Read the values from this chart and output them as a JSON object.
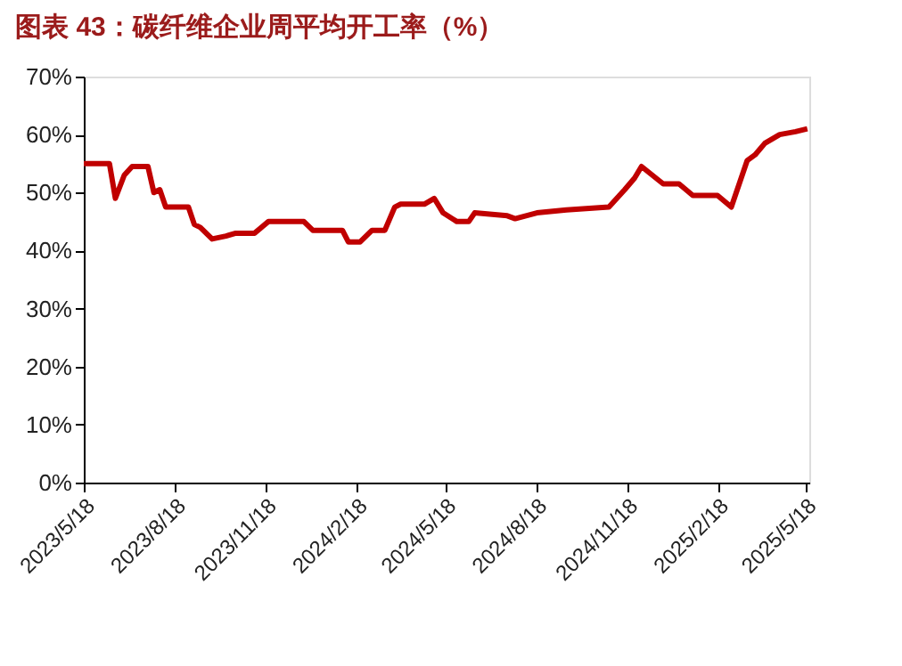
{
  "chart_data": {
    "type": "line",
    "title": "图表 43：碳纤维企业周平均开工率（%）",
    "x": [
      "2023-05-18",
      "2023-06-13",
      "2023-06-19",
      "2023-06-28",
      "2023-07-06",
      "2023-07-22",
      "2023-07-28",
      "2023-08-03",
      "2023-08-09",
      "2023-09-01",
      "2023-09-07",
      "2023-09-13",
      "2023-09-25",
      "2023-10-09",
      "2023-10-19",
      "2023-11-07",
      "2023-11-21",
      "2023-12-27",
      "2024-01-05",
      "2024-02-04",
      "2024-02-10",
      "2024-02-22",
      "2024-03-05",
      "2024-03-18",
      "2024-03-28",
      "2024-04-03",
      "2024-04-27",
      "2024-05-07",
      "2024-05-16",
      "2024-05-30",
      "2024-06-11",
      "2024-06-17",
      "2024-07-20",
      "2024-07-28",
      "2024-08-19",
      "2024-09-18",
      "2024-10-31",
      "2024-11-16",
      "2024-11-26",
      "2024-12-03",
      "2024-12-25",
      "2025-01-10",
      "2025-01-24",
      "2025-02-18",
      "2025-03-04",
      "2025-03-20",
      "2025-03-28",
      "2025-04-07",
      "2025-04-22",
      "2025-05-08",
      "2025-05-20"
    ],
    "series": [
      {
        "color": "#c00000",
        "values": [
          55,
          55,
          49,
          53,
          54.5,
          54.5,
          50,
          50.5,
          47.5,
          47.5,
          44.5,
          44,
          42,
          42.5,
          43,
          43,
          45,
          45,
          43.5,
          43.5,
          41.5,
          41.5,
          43.5,
          43.5,
          47.5,
          48,
          48,
          49,
          46.5,
          45,
          45,
          46.5,
          46,
          45.5,
          46.5,
          47,
          47.5,
          50.5,
          52.5,
          54.5,
          51.5,
          51.5,
          49.5,
          49.5,
          47.5,
          55.5,
          56.5,
          58.5,
          60,
          60.5,
          61
        ]
      }
    ],
    "xlim": [
      "2023-05-18",
      "2025-05-22"
    ],
    "xticks": [
      {
        "value": "2023-05-18",
        "label": "2023/5/18"
      },
      {
        "value": "2023-08-18",
        "label": "2023/8/18"
      },
      {
        "value": "2023-11-18",
        "label": "2023/11/18"
      },
      {
        "value": "2024-02-18",
        "label": "2024/2/18"
      },
      {
        "value": "2024-05-18",
        "label": "2024/5/18"
      },
      {
        "value": "2024-08-18",
        "label": "2024/8/18"
      },
      {
        "value": "2024-11-18",
        "label": "2024/11/18"
      },
      {
        "value": "2025-02-18",
        "label": "2025/2/18"
      },
      {
        "value": "2025-05-18",
        "label": "2025/5/18"
      }
    ],
    "ylim": [
      0,
      70
    ],
    "yticks": [
      {
        "value": 0,
        "label": "0%"
      },
      {
        "value": 10,
        "label": "10%"
      },
      {
        "value": 20,
        "label": "20%"
      },
      {
        "value": 30,
        "label": "30%"
      },
      {
        "value": 40,
        "label": "40%"
      },
      {
        "value": 50,
        "label": "50%"
      },
      {
        "value": 60,
        "label": "60%"
      },
      {
        "value": 70,
        "label": "70%"
      }
    ],
    "grid": false,
    "marker": "none",
    "line_style": "solid"
  }
}
